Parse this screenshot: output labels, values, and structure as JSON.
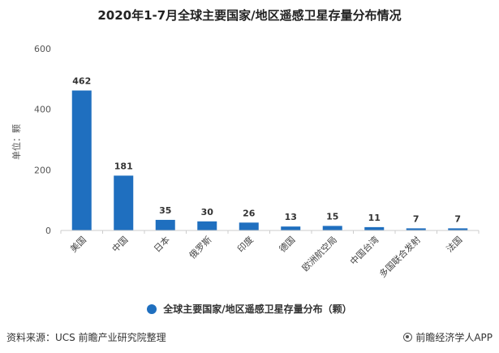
{
  "chart_data": {
    "type": "bar",
    "title": "2020年1-7月全球主要国家/地区遥感卫星存量分布情况",
    "categories": [
      "美国",
      "中国",
      "日本",
      "俄罗斯",
      "印度",
      "德国",
      "欧洲航空局",
      "中国台湾",
      "多国联合发射",
      "法国"
    ],
    "values": [
      462,
      181,
      35,
      30,
      26,
      13,
      15,
      11,
      7,
      7
    ],
    "series_name": "全球主要国家/地区遥感卫星存量分布（颗）",
    "ylabel": "单位：颗",
    "xlabel": "",
    "ylim": [
      0,
      600
    ],
    "yticks": [
      0,
      200,
      400,
      600
    ],
    "grid": false,
    "legend": "bottom-center",
    "bar_color": "#1f6fbf"
  },
  "footer": {
    "source": "资料来源：UCS 前瞻产业研究院整理",
    "brand": "前瞻经济学人APP"
  },
  "watermark_text": "前瞻产业研究院"
}
